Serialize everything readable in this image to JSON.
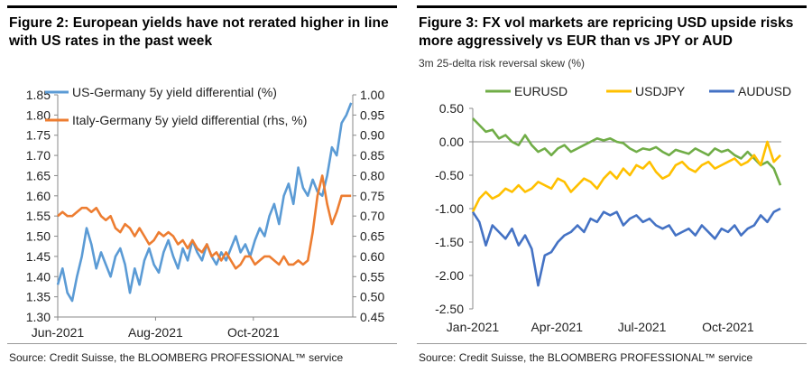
{
  "figure2": {
    "title": "Figure 2: European yields have not rerated higher in line with US rates in the past week",
    "source": "Source: Credit Suisse, the BLOOMBERG PROFESSIONAL™ service",
    "colors": {
      "us": "#5b9bd5",
      "italy": "#ed7d31"
    },
    "chart_data": {
      "type": "line",
      "title": "Figure 2: European yields have not rerated higher in line with US rates in the past week",
      "x_tick_labels": [
        "Jun-2021",
        "Aug-2021",
        "Oct-2021"
      ],
      "x_tick_days": [
        0,
        61,
        122
      ],
      "x_range_days": [
        0,
        184
      ],
      "y_left": {
        "range": [
          1.3,
          1.85
        ],
        "ticks": [
          "1.30",
          "1.35",
          "1.40",
          "1.45",
          "1.50",
          "1.55",
          "1.60",
          "1.65",
          "1.70",
          "1.75",
          "1.80",
          "1.85"
        ]
      },
      "y_right": {
        "range": [
          0.45,
          1.0
        ],
        "ticks": [
          "0.45",
          "0.50",
          "0.55",
          "0.60",
          "0.65",
          "0.70",
          "0.75",
          "0.80",
          "0.85",
          "0.90",
          "0.95",
          "1.00"
        ]
      },
      "legend": [
        {
          "name": "US-Germany 5y yield differential (%)",
          "axis": "left"
        },
        {
          "name": "Italy-Germany 5y  yield differential (rhs, %)",
          "axis": "right"
        }
      ],
      "series": [
        {
          "name": "US-Germany 5y yield differential (%)",
          "axis": "left",
          "x": [
            0,
            3,
            6,
            9,
            12,
            15,
            18,
            21,
            24,
            27,
            30,
            33,
            36,
            39,
            42,
            45,
            48,
            51,
            54,
            57,
            60,
            63,
            66,
            69,
            72,
            75,
            78,
            81,
            84,
            87,
            90,
            93,
            96,
            99,
            102,
            105,
            108,
            111,
            114,
            117,
            120,
            123,
            126,
            129,
            132,
            135,
            138,
            141,
            144,
            147,
            150,
            153,
            156,
            159,
            162,
            165,
            168,
            171,
            174,
            177,
            180,
            183
          ],
          "y": [
            1.38,
            1.42,
            1.36,
            1.34,
            1.4,
            1.45,
            1.52,
            1.48,
            1.42,
            1.46,
            1.43,
            1.4,
            1.45,
            1.47,
            1.43,
            1.36,
            1.42,
            1.38,
            1.44,
            1.47,
            1.43,
            1.41,
            1.46,
            1.49,
            1.45,
            1.42,
            1.47,
            1.44,
            1.49,
            1.46,
            1.44,
            1.48,
            1.45,
            1.43,
            1.46,
            1.44,
            1.47,
            1.5,
            1.46,
            1.48,
            1.45,
            1.49,
            1.52,
            1.5,
            1.55,
            1.58,
            1.53,
            1.6,
            1.63,
            1.58,
            1.67,
            1.62,
            1.6,
            1.64,
            1.61,
            1.6,
            1.65,
            1.72,
            1.7,
            1.78,
            1.8,
            1.83
          ]
        },
        {
          "name": "Italy-Germany 5y  yield differential (rhs, %)",
          "axis": "right",
          "x": [
            0,
            3,
            6,
            9,
            12,
            15,
            18,
            21,
            24,
            27,
            30,
            33,
            36,
            39,
            42,
            45,
            48,
            51,
            54,
            57,
            60,
            63,
            66,
            69,
            72,
            75,
            78,
            81,
            84,
            87,
            90,
            93,
            96,
            99,
            102,
            105,
            108,
            111,
            114,
            117,
            120,
            123,
            126,
            129,
            132,
            135,
            138,
            141,
            144,
            147,
            150,
            153,
            156,
            159,
            162,
            165,
            168,
            171,
            174,
            177,
            180,
            183
          ],
          "y": [
            0.7,
            0.71,
            0.7,
            0.7,
            0.71,
            0.72,
            0.72,
            0.71,
            0.72,
            0.7,
            0.69,
            0.7,
            0.67,
            0.66,
            0.68,
            0.67,
            0.65,
            0.67,
            0.65,
            0.63,
            0.64,
            0.66,
            0.65,
            0.66,
            0.65,
            0.63,
            0.64,
            0.62,
            0.64,
            0.62,
            0.61,
            0.63,
            0.6,
            0.61,
            0.59,
            0.61,
            0.59,
            0.57,
            0.58,
            0.6,
            0.6,
            0.58,
            0.59,
            0.6,
            0.6,
            0.59,
            0.58,
            0.6,
            0.58,
            0.58,
            0.59,
            0.58,
            0.59,
            0.66,
            0.75,
            0.8,
            0.73,
            0.68,
            0.71,
            0.75,
            0.75,
            0.75
          ]
        }
      ]
    }
  },
  "figure3": {
    "title": "Figure 3: FX vol markets are repricing USD upside risks more aggressively vs EUR than vs JPY or AUD",
    "subtitle": "3m 25-delta risk reversal skew (%)",
    "source": "Source: Credit Suisse, the BLOOMBERG PROFESSIONAL™ service",
    "colors": {
      "eur": "#70ad47",
      "jpy": "#ffc000",
      "aud": "#4472c4"
    },
    "chart_data": {
      "type": "line",
      "title": "Figure 3: FX vol markets are repricing USD upside risks more aggressively vs EUR than vs JPY or AUD",
      "ylabel": "3m 25-delta risk reversal skew (%)",
      "x_tick_labels": [
        "Jan-2021",
        "Apr-2021",
        "Jul-2021",
        "Oct-2021"
      ],
      "x_tick_days": [
        0,
        90,
        181,
        273
      ],
      "x_range_days": [
        0,
        330
      ],
      "y_range": [
        -2.5,
        0.5
      ],
      "y_ticks": [
        "-2.50",
        "-2.00",
        "-1.50",
        "-1.00",
        "-0.50",
        "0.00",
        "0.50"
      ],
      "legend": [
        "EURUSD",
        "USDJPY",
        "AUDUSD"
      ],
      "series": [
        {
          "name": "EURUSD",
          "x": [
            0,
            7,
            14,
            21,
            28,
            35,
            42,
            49,
            56,
            63,
            70,
            77,
            84,
            91,
            98,
            105,
            112,
            119,
            126,
            133,
            140,
            147,
            154,
            161,
            168,
            175,
            182,
            189,
            196,
            203,
            210,
            217,
            224,
            231,
            238,
            245,
            252,
            259,
            266,
            273,
            280,
            287,
            294,
            301,
            308,
            315,
            322,
            329
          ],
          "y": [
            0.35,
            0.25,
            0.15,
            0.18,
            0.05,
            0.1,
            0.0,
            -0.05,
            0.1,
            -0.05,
            -0.15,
            -0.1,
            -0.2,
            -0.1,
            -0.05,
            -0.15,
            -0.1,
            -0.05,
            0.0,
            0.05,
            0.02,
            0.05,
            0.0,
            -0.02,
            -0.1,
            -0.15,
            -0.1,
            -0.12,
            -0.08,
            -0.15,
            -0.2,
            -0.12,
            -0.15,
            -0.18,
            -0.1,
            -0.15,
            -0.2,
            -0.1,
            -0.15,
            -0.12,
            -0.2,
            -0.25,
            -0.15,
            -0.25,
            -0.35,
            -0.3,
            -0.4,
            -0.65
          ]
        },
        {
          "name": "USDJPY",
          "x": [
            0,
            7,
            14,
            21,
            28,
            35,
            42,
            49,
            56,
            63,
            70,
            77,
            84,
            91,
            98,
            105,
            112,
            119,
            126,
            133,
            140,
            147,
            154,
            161,
            168,
            175,
            182,
            189,
            196,
            203,
            210,
            217,
            224,
            231,
            238,
            245,
            252,
            259,
            266,
            273,
            280,
            287,
            294,
            301,
            308,
            315,
            322,
            329
          ],
          "y": [
            -1.05,
            -0.85,
            -0.75,
            -0.85,
            -0.8,
            -0.7,
            -0.75,
            -0.65,
            -0.75,
            -0.7,
            -0.6,
            -0.65,
            -0.7,
            -0.55,
            -0.6,
            -0.75,
            -0.65,
            -0.55,
            -0.6,
            -0.7,
            -0.55,
            -0.45,
            -0.55,
            -0.4,
            -0.5,
            -0.35,
            -0.4,
            -0.3,
            -0.45,
            -0.55,
            -0.5,
            -0.35,
            -0.3,
            -0.4,
            -0.45,
            -0.35,
            -0.3,
            -0.4,
            -0.35,
            -0.3,
            -0.25,
            -0.35,
            -0.3,
            -0.2,
            -0.35,
            0.0,
            -0.3,
            -0.2
          ]
        },
        {
          "name": "AUDUSD",
          "x": [
            0,
            7,
            14,
            21,
            28,
            35,
            42,
            49,
            56,
            63,
            70,
            77,
            84,
            91,
            98,
            105,
            112,
            119,
            126,
            133,
            140,
            147,
            154,
            161,
            168,
            175,
            182,
            189,
            196,
            203,
            210,
            217,
            224,
            231,
            238,
            245,
            252,
            259,
            266,
            273,
            280,
            287,
            294,
            301,
            308,
            315,
            322,
            329
          ],
          "y": [
            -1.05,
            -1.2,
            -1.55,
            -1.25,
            -1.35,
            -1.45,
            -1.3,
            -1.55,
            -1.4,
            -1.6,
            -2.15,
            -1.7,
            -1.65,
            -1.5,
            -1.4,
            -1.35,
            -1.25,
            -1.35,
            -1.15,
            -1.2,
            -1.05,
            -1.1,
            -1.05,
            -1.25,
            -1.15,
            -1.1,
            -1.2,
            -1.15,
            -1.25,
            -1.3,
            -1.25,
            -1.4,
            -1.35,
            -1.3,
            -1.4,
            -1.25,
            -1.35,
            -1.45,
            -1.3,
            -1.35,
            -1.25,
            -1.4,
            -1.3,
            -1.25,
            -1.1,
            -1.2,
            -1.05,
            -1.0
          ]
        }
      ]
    }
  }
}
